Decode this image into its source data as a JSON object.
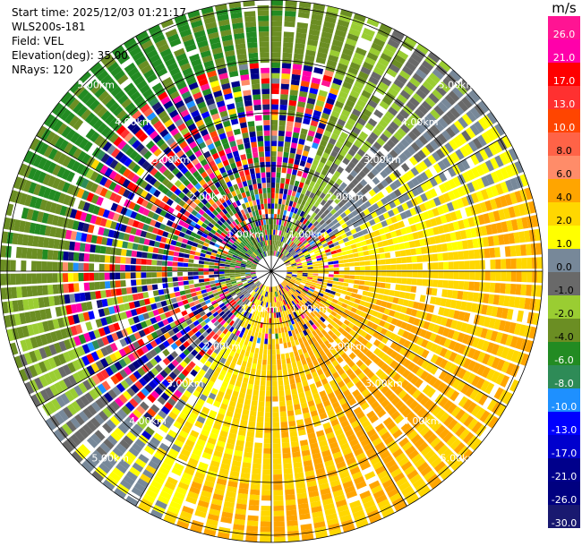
{
  "info": {
    "start_time": "Start time: 2025/12/03 01:21:17",
    "station": "WLS200s-181",
    "field": "Field: VEL",
    "elevation": "Elevation(deg): 35.00",
    "nrays": "NRays: 120"
  },
  "colorbar": {
    "unit": "m/s",
    "bins": [
      {
        "label": "26.0",
        "color": "#ff1493"
      },
      {
        "label": "21.0",
        "color": "#ff00aa"
      },
      {
        "label": "17.0",
        "color": "#ff0000"
      },
      {
        "label": "13.0",
        "color": "#ff3030"
      },
      {
        "label": "10.0",
        "color": "#ff4500"
      },
      {
        "label": "8.0",
        "color": "#ff6347"
      },
      {
        "label": "6.0",
        "color": "#ff8c69"
      },
      {
        "label": "4.0",
        "color": "#ffa500"
      },
      {
        "label": "2.0",
        "color": "#ffd700"
      },
      {
        "label": "1.0",
        "color": "#ffff00"
      },
      {
        "label": "0.0",
        "color": "#778899"
      },
      {
        "label": "-1.0",
        "color": "#696969"
      },
      {
        "label": "-2.0",
        "color": "#9acd32"
      },
      {
        "label": "-4.0",
        "color": "#6b8e23"
      },
      {
        "label": "-6.0",
        "color": "#228b22"
      },
      {
        "label": "-8.0",
        "color": "#2e8b57"
      },
      {
        "label": "-10.0",
        "color": "#1e90ff"
      },
      {
        "label": "-13.0",
        "color": "#0000ff"
      },
      {
        "label": "-17.0",
        "color": "#0000cd"
      },
      {
        "label": "-21.0",
        "color": "#00008b"
      },
      {
        "label": "-26.0",
        "color": "#000080"
      },
      {
        "label": "-30.0",
        "color": "#191970"
      }
    ]
  },
  "chart_data": {
    "type": "heatmap",
    "title": "",
    "xlabel": "",
    "ylabel": "",
    "grid": true,
    "range_ring_labels": [
      "1.00km",
      "2.00km",
      "3.00km",
      "4.00km",
      "5.00km"
    ],
    "range_rings_km": [
      1,
      2,
      3,
      4,
      5
    ],
    "azimuth_spokes_deg": [
      0,
      30,
      60,
      90,
      120,
      150,
      180,
      210,
      240,
      270,
      300,
      330
    ],
    "field": "VEL",
    "units": "m/s",
    "elevation_deg": 35.0,
    "n_rays": 120,
    "value_range": [
      -30,
      30
    ],
    "dominant_regions": [
      {
        "sector": "north-west",
        "velocity_range_ms": [
          -30,
          26
        ],
        "note": "aliased / mixed values"
      },
      {
        "sector": "east to south",
        "velocity_range_ms": [
          0,
          6
        ],
        "note": "positive (receding) flow"
      },
      {
        "sector": "west",
        "velocity_range_ms": [
          -6,
          -1
        ],
        "note": "negative (approaching) flow"
      }
    ]
  }
}
